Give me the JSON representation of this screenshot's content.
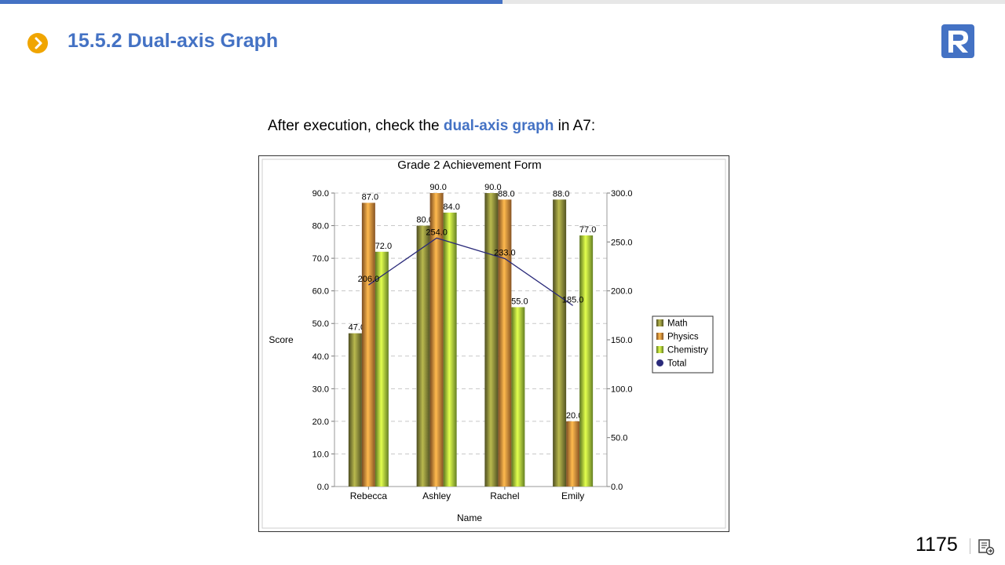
{
  "header": {
    "title": "15.5.2 Dual-axis Graph",
    "accent": "#4472c4",
    "bullet_color": "#f0a500",
    "bullet_icon": "chevron-right-icon",
    "logo_icon": "r-logo-icon"
  },
  "intro": {
    "before": "After execution, check the ",
    "highlight": "dual-axis graph",
    "after": " in A7:"
  },
  "chart_data": {
    "type": "bar",
    "title": "Grade 2 Achievement Form",
    "xlabel": "Name",
    "ylabel": "Score",
    "categories": [
      "Rebecca",
      "Ashley",
      "Rachel",
      "Emily"
    ],
    "ylim": [
      0,
      90
    ],
    "y2lim": [
      0,
      300
    ],
    "yticks": [
      "0.0",
      "10.0",
      "20.0",
      "30.0",
      "40.0",
      "50.0",
      "60.0",
      "70.0",
      "80.0",
      "90.0"
    ],
    "y2ticks": [
      "0.0",
      "50.0",
      "100.0",
      "150.0",
      "200.0",
      "250.0",
      "300.0"
    ],
    "grid": true,
    "legend_position": "right",
    "series": [
      {
        "name": "Math",
        "type": "bar",
        "axis": "left",
        "color": "#8a8a3a",
        "values": [
          47.0,
          80.0,
          90.0,
          88.0
        ],
        "labels": [
          "47.0",
          "80.0",
          "90.0",
          "88.0"
        ]
      },
      {
        "name": "Physics",
        "type": "bar",
        "axis": "left",
        "color": "#e08a3a",
        "values": [
          87.0,
          90.0,
          88.0,
          20.0
        ],
        "labels": [
          "87.0",
          "90.0",
          "88.0",
          "20.0"
        ]
      },
      {
        "name": "Chemistry",
        "type": "bar",
        "axis": "left",
        "color": "#a8d43a",
        "values": [
          72.0,
          84.0,
          55.0,
          77.0
        ],
        "labels": [
          "72.0",
          "84.0",
          "55.0",
          "77.0"
        ]
      },
      {
        "name": "Total",
        "type": "line",
        "axis": "right",
        "color": "#2a2a7a",
        "values": [
          206.0,
          254.0,
          233.0,
          185.0
        ],
        "labels": [
          "206.0",
          "254.0",
          "233.0",
          "185.0"
        ]
      }
    ]
  },
  "footer": {
    "page_number": "1175",
    "icon": "slide-return-icon"
  }
}
